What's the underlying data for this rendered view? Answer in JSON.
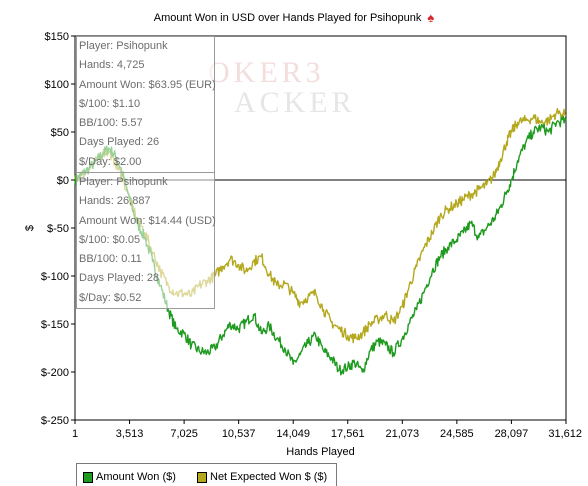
{
  "chart_data": {
    "type": "line",
    "title": "Amount Won in USD over Hands Played for Psihopunk",
    "xlabel": "Hands Played",
    "ylabel": "$",
    "xlim": [
      1,
      31612
    ],
    "ylim": [
      -250,
      150
    ],
    "x_ticks": [
      1,
      3513,
      7025,
      10537,
      14049,
      17561,
      21073,
      24585,
      28097,
      31612
    ],
    "x_tick_labels": [
      "1",
      "3,513",
      "7,025",
      "10,537",
      "14,049",
      "17,561",
      "21,073",
      "24,585",
      "28,097",
      "31,612"
    ],
    "y_ticks": [
      150,
      100,
      50,
      0,
      -50,
      -100,
      -150,
      -200,
      -250
    ],
    "y_tick_labels": [
      "$150",
      "$100",
      "$50",
      "$0",
      "$-50",
      "$-100",
      "$-150",
      "$-200",
      "$-250"
    ],
    "zero_line": true,
    "grid": false,
    "legend_position": "bottom-left",
    "series": [
      {
        "name": "Amount Won ($)",
        "color": "#1e9a1e",
        "x": [
          1,
          400,
          900,
          1400,
          1800,
          2200,
          2600,
          3000,
          3513,
          4000,
          4500,
          5000,
          5500,
          6000,
          6500,
          7025,
          7500,
          8000,
          8500,
          9000,
          9500,
          10000,
          10537,
          11000,
          11500,
          12000,
          12500,
          13000,
          13500,
          14049,
          14500,
          15000,
          15500,
          16000,
          16500,
          17000,
          17561,
          18000,
          18500,
          19000,
          19500,
          20000,
          20500,
          21073,
          21500,
          22000,
          22500,
          23000,
          23500,
          24000,
          24585,
          25000,
          25500,
          26000,
          26500,
          27000,
          27400,
          27800,
          28097,
          28500,
          29000,
          29500,
          30000,
          30500,
          31000,
          31612
        ],
        "y": [
          0,
          5,
          12,
          20,
          28,
          33,
          25,
          10,
          -20,
          -45,
          -60,
          -85,
          -110,
          -135,
          -155,
          -160,
          -172,
          -178,
          -180,
          -175,
          -162,
          -150,
          -155,
          -148,
          -140,
          -160,
          -152,
          -165,
          -175,
          -192,
          -182,
          -170,
          -162,
          -178,
          -185,
          -198,
          -195,
          -190,
          -200,
          -178,
          -168,
          -172,
          -180,
          -165,
          -150,
          -135,
          -115,
          -95,
          -80,
          -70,
          -62,
          -55,
          -45,
          -60,
          -50,
          -40,
          -28,
          -12,
          0,
          20,
          38,
          50,
          55,
          50,
          60,
          62
        ]
      },
      {
        "name": "Net Expected Won $ ($)",
        "color": "#b4a81e",
        "x": [
          1,
          400,
          900,
          1400,
          1800,
          2200,
          2600,
          3000,
          3513,
          4000,
          4500,
          5000,
          5500,
          6000,
          6500,
          7025,
          7500,
          8000,
          8500,
          9000,
          9500,
          10000,
          10537,
          11000,
          11500,
          12000,
          12500,
          13000,
          13500,
          14049,
          14500,
          15000,
          15500,
          16000,
          16500,
          17000,
          17561,
          18000,
          18500,
          19000,
          19500,
          20000,
          20500,
          21073,
          21500,
          22000,
          22500,
          23000,
          23500,
          24000,
          24585,
          25000,
          25500,
          26000,
          26500,
          27000,
          27400,
          27800,
          28097,
          28500,
          29000,
          29500,
          30000,
          30500,
          31000,
          31612
        ],
        "y": [
          0,
          5,
          12,
          20,
          28,
          30,
          18,
          5,
          -20,
          -40,
          -55,
          -75,
          -95,
          -110,
          -118,
          -118,
          -120,
          -110,
          -105,
          -100,
          -90,
          -82,
          -88,
          -95,
          -85,
          -80,
          -98,
          -110,
          -108,
          -118,
          -128,
          -122,
          -118,
          -135,
          -148,
          -155,
          -162,
          -165,
          -160,
          -150,
          -145,
          -140,
          -148,
          -132,
          -112,
          -90,
          -70,
          -55,
          -38,
          -30,
          -25,
          -20,
          -15,
          -10,
          -5,
          5,
          22,
          40,
          50,
          60,
          62,
          65,
          60,
          62,
          70,
          68
        ]
      }
    ]
  },
  "info_boxes": [
    {
      "lines": [
        "Player: Psihopunk",
        "Hands: 4,725",
        "Amount Won: $63.95 (EUR)",
        "$/100: $1.10",
        "BB/100: 5.57",
        "Days Played: 26",
        "$/Day: $2.00"
      ]
    },
    {
      "lines": [
        "Player: Psihopunk",
        "Hands: 26,887",
        "Amount Won: $14.44 (USD)",
        "$/100: $0.05",
        "BB/100: 0.11",
        "Days Played: 28",
        "$/Day: $0.52"
      ]
    }
  ],
  "watermark": {
    "line1": "OKER3",
    "line2": "ACKER"
  },
  "legend": [
    {
      "label": "Amount Won ($)",
      "color": "#1e9a1e"
    },
    {
      "label": "Net Expected Won $ ($)",
      "color": "#b4a81e"
    }
  ],
  "icons": {
    "title_icon": "spade-icon"
  }
}
